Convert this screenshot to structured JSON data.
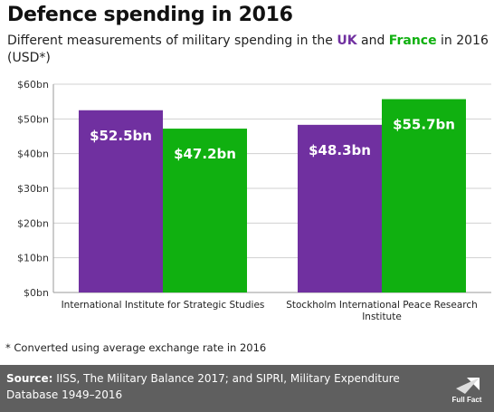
{
  "header": {
    "title": "Defence spending in 2016",
    "subtitle_pre": "Different measurements of military spending in the ",
    "subtitle_uk": "UK",
    "subtitle_mid": " and ",
    "subtitle_fr": "France",
    "subtitle_post": " in 2016 (USD*)"
  },
  "footnote": "* Converted using average exchange rate in 2016",
  "footer": {
    "source_label": "Source:",
    "source_text": " IISS, The Military Balance 2017; and SIPRI, Military Expenditure Database 1949–2016",
    "logo_text": "Full Fact"
  },
  "colors": {
    "uk": "#7030a0",
    "france": "#10b010",
    "grid": "#d0d0d0",
    "axis": "#999999"
  },
  "chart_data": {
    "type": "bar",
    "categories": [
      "International Institute for Strategic Studies",
      "Stockholm International Peace Research Institute"
    ],
    "category_lines": [
      [
        "International Institute for Strategic Studies"
      ],
      [
        "Stockholm International Peace Research",
        "Institute"
      ]
    ],
    "series": [
      {
        "name": "UK",
        "values": [
          52.5,
          48.3
        ],
        "labels": [
          "$52.5bn",
          "$48.3bn"
        ]
      },
      {
        "name": "France",
        "values": [
          47.2,
          55.7
        ],
        "labels": [
          "$47.2bn",
          "$55.7bn"
        ]
      }
    ],
    "ylim": [
      0,
      60
    ],
    "yticks": [
      0,
      10,
      20,
      30,
      40,
      50,
      60
    ],
    "ytick_labels": [
      "$0bn",
      "$10bn",
      "$20bn",
      "$30bn",
      "$40bn",
      "$50bn",
      "$60bn"
    ],
    "grid": true
  }
}
